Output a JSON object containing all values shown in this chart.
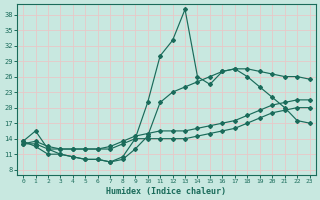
{
  "xlabel": "Humidex (Indice chaleur)",
  "bg_color": "#c8e8e0",
  "grid_color": "#e8c8c8",
  "line_color": "#1a6b5a",
  "xlim": [
    -0.5,
    23.5
  ],
  "ylim": [
    7,
    40
  ],
  "xticks": [
    0,
    1,
    2,
    3,
    4,
    5,
    6,
    7,
    8,
    9,
    10,
    11,
    12,
    13,
    14,
    15,
    16,
    17,
    18,
    19,
    20,
    21,
    22,
    23
  ],
  "yticks": [
    8,
    11,
    14,
    17,
    20,
    23,
    26,
    29,
    32,
    35,
    38
  ],
  "s1": [
    13.5,
    15.5,
    12,
    11,
    10.5,
    10,
    10,
    9.5,
    10.5,
    14,
    21,
    30,
    33,
    39,
    26,
    24.5,
    27,
    27.5,
    27.5,
    27,
    26.5,
    26,
    26,
    25.5
  ],
  "s2": [
    13.5,
    12.5,
    11,
    11,
    10.5,
    10,
    10,
    9.5,
    10,
    12,
    14.5,
    21,
    23,
    24,
    25,
    26,
    27,
    27.5,
    26,
    24,
    22,
    20,
    17.5,
    17
  ],
  "s3": [
    13,
    13.5,
    12.5,
    12,
    12,
    12,
    12,
    12.5,
    13.5,
    14.5,
    15,
    15.5,
    15.5,
    15.5,
    16,
    16.5,
    17,
    17.5,
    18.5,
    19.5,
    20.5,
    21,
    21.5,
    21.5
  ],
  "s4": [
    13,
    13,
    12,
    12,
    12,
    12,
    12,
    12,
    13,
    14,
    14,
    14,
    14,
    14,
    14.5,
    15,
    15.5,
    16,
    17,
    18,
    19,
    19.5,
    20,
    20
  ]
}
